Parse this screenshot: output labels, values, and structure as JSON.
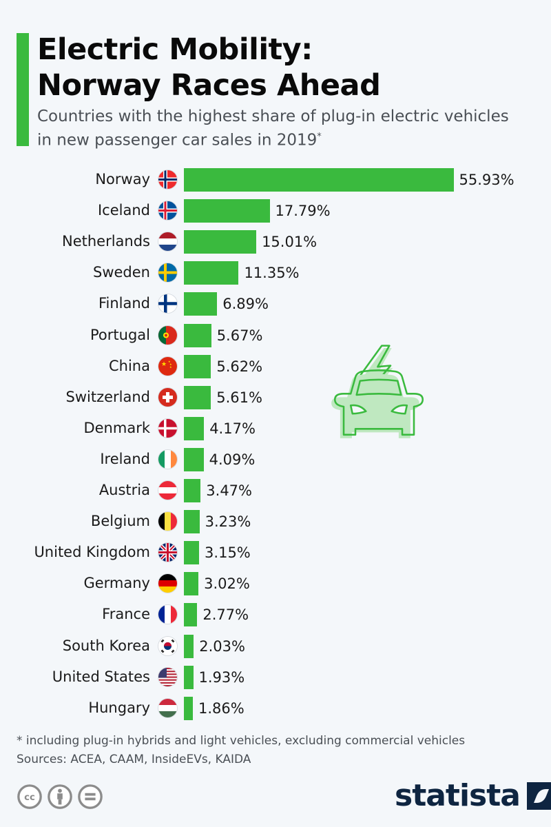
{
  "header": {
    "title_line1": "Electric Mobility:",
    "title_line2": "Norway Races Ahead",
    "subtitle_line1": "Countries with the highest share of plug-in electric vehicles",
    "subtitle_line2": "in new passenger car sales in 2019",
    "subtitle_marker": "*"
  },
  "colors": {
    "accent": "#3aba3e",
    "background": "#f4f7fa",
    "logo": "#0e2541",
    "illustration_fill": "#bfe8c0"
  },
  "chart_data": {
    "type": "bar",
    "orientation": "horizontal",
    "title": "Electric Mobility: Norway Races Ahead",
    "subtitle": "Countries with the highest share of plug-in electric vehicles in new passenger car sales in 2019*",
    "xlabel": "",
    "ylabel": "",
    "unit": "%",
    "grid": false,
    "legend": null,
    "categories": [
      "Norway",
      "Iceland",
      "Netherlands",
      "Sweden",
      "Finland",
      "Portugal",
      "China",
      "Switzerland",
      "Denmark",
      "Ireland",
      "Austria",
      "Belgium",
      "United Kingdom",
      "Germany",
      "France",
      "South Korea",
      "United States",
      "Hungary"
    ],
    "values": [
      55.93,
      17.79,
      15.01,
      11.35,
      6.89,
      5.67,
      5.62,
      5.61,
      4.17,
      4.09,
      3.47,
      3.23,
      3.15,
      3.02,
      2.77,
      2.03,
      1.93,
      1.86
    ],
    "value_labels": [
      "55.93%",
      "17.79%",
      "15.01%",
      "11.35%",
      "6.89%",
      "5.67%",
      "5.62%",
      "5.61%",
      "4.17%",
      "4.09%",
      "3.47%",
      "3.23%",
      "3.15%",
      "3.02%",
      "2.77%",
      "2.03%",
      "1.93%",
      "1.86%"
    ],
    "flag_icons": [
      "norway-flag-icon",
      "iceland-flag-icon",
      "netherlands-flag-icon",
      "sweden-flag-icon",
      "finland-flag-icon",
      "portugal-flag-icon",
      "china-flag-icon",
      "switzerland-flag-icon",
      "denmark-flag-icon",
      "ireland-flag-icon",
      "austria-flag-icon",
      "belgium-flag-icon",
      "united-kingdom-flag-icon",
      "germany-flag-icon",
      "france-flag-icon",
      "south-korea-flag-icon",
      "united-states-flag-icon",
      "hungary-flag-icon"
    ],
    "xlim": [
      0,
      56
    ]
  },
  "illustration": {
    "icon": "electric-car-icon"
  },
  "footer": {
    "note": "* including plug-in hybrids and light vehicles, excluding commercial vehicles",
    "sources": "Sources: ACEA, CAAM, InsideEVs, KAIDA",
    "license_icons": [
      "cc-icon",
      "attribution-icon",
      "no-derivatives-icon"
    ],
    "logo_text": "statista"
  }
}
